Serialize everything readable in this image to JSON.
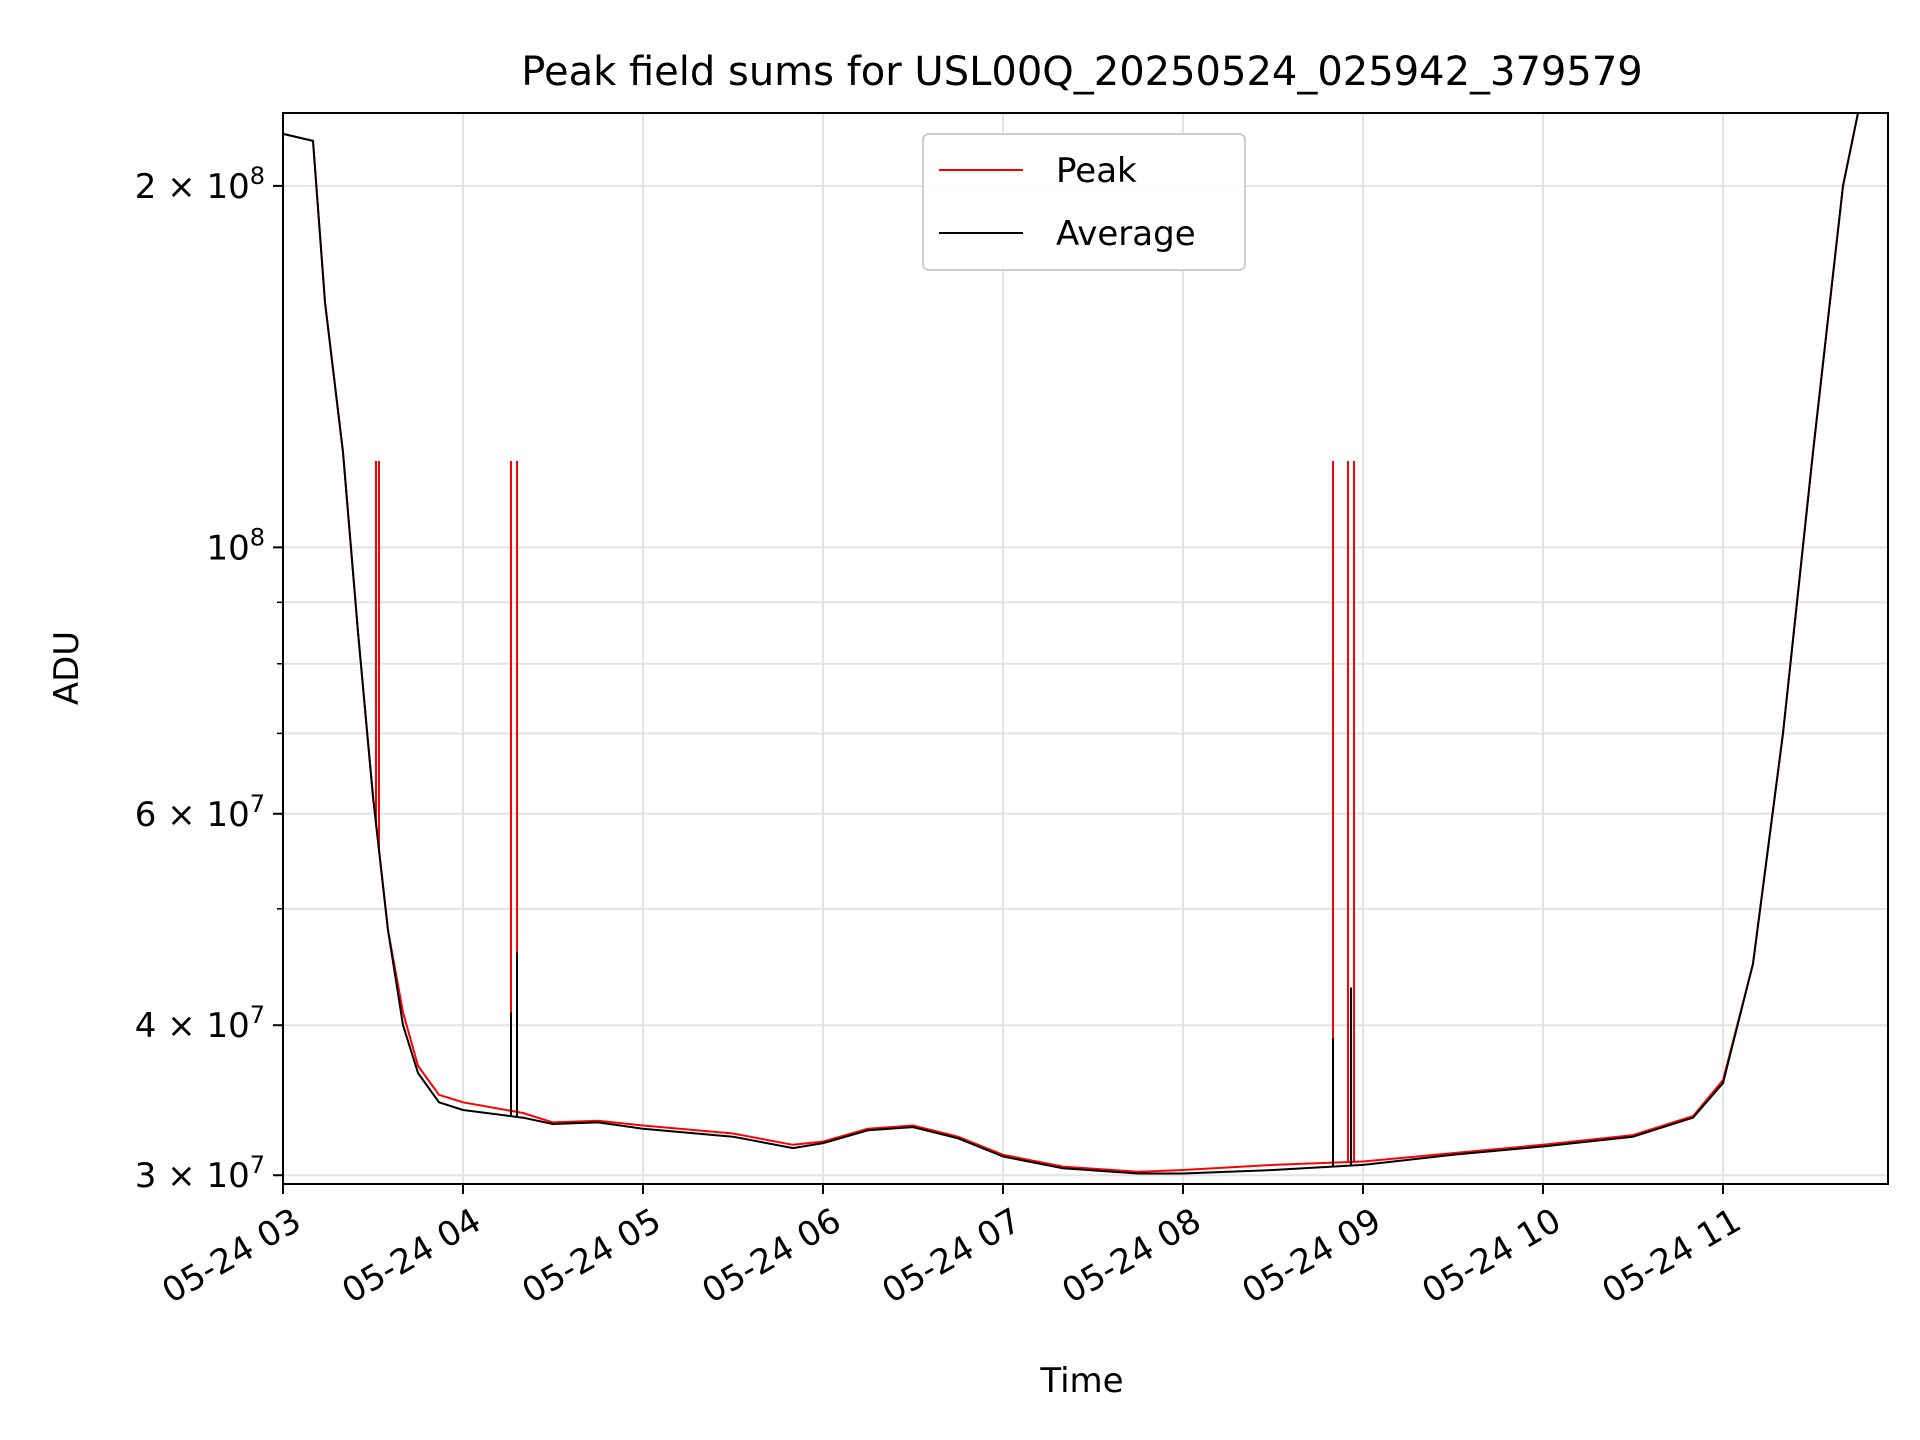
{
  "chart_data": {
    "type": "line",
    "title": "Peak field sums for USL00Q_20250524_025942_379579",
    "xlabel": "Time",
    "ylabel": "ADU",
    "y_scale": "log",
    "xlim": [
      "2025-05-24 03:00",
      "2025-05-24 11:55"
    ],
    "ylim": [
      29500000,
      230000000
    ],
    "x_ticks": [
      "05-24 03",
      "05-24 04",
      "05-24 05",
      "05-24 06",
      "05-24 07",
      "05-24 08",
      "05-24 09",
      "05-24 10",
      "05-24 11"
    ],
    "y_ticks": [
      {
        "value": 30000000,
        "base": "3",
        "exp": "7"
      },
      {
        "value": 40000000,
        "base": "4",
        "exp": "7"
      },
      {
        "value": 60000000,
        "base": "6",
        "exp": "7"
      },
      {
        "value": 100000000,
        "base": "",
        "exp": "8"
      },
      {
        "value": 200000000,
        "base": "2",
        "exp": "8"
      }
    ],
    "grid": true,
    "legend_position": "top-center",
    "series": [
      {
        "name": "Peak",
        "color": "#ff0000",
        "points": [
          [
            "2025-05-24 03:00",
            221000000
          ],
          [
            "2025-05-24 03:10",
            218000000
          ],
          [
            "2025-05-24 03:14",
            160000000
          ],
          [
            "2025-05-24 03:20",
            120000000
          ],
          [
            "2025-05-24 03:25",
            85000000
          ],
          [
            "2025-05-24 03:30",
            62000000
          ],
          [
            "2025-05-24 03:35",
            48000000
          ],
          [
            "2025-05-24 03:40",
            41000000
          ],
          [
            "2025-05-24 03:45",
            37000000
          ],
          [
            "2025-05-24 03:52",
            35000000
          ],
          [
            "2025-05-24 04:00",
            34500000
          ],
          [
            "2025-05-24 04:20",
            33800000
          ],
          [
            "2025-05-24 04:30",
            33200000
          ],
          [
            "2025-05-24 04:45",
            33300000
          ],
          [
            "2025-05-24 05:00",
            33000000
          ],
          [
            "2025-05-24 05:30",
            32500000
          ],
          [
            "2025-05-24 05:50",
            31800000
          ],
          [
            "2025-05-24 06:00",
            32000000
          ],
          [
            "2025-05-24 06:15",
            32800000
          ],
          [
            "2025-05-24 06:30",
            33000000
          ],
          [
            "2025-05-24 06:45",
            32300000
          ],
          [
            "2025-05-24 07:00",
            31200000
          ],
          [
            "2025-05-24 07:20",
            30500000
          ],
          [
            "2025-05-24 07:45",
            30200000
          ],
          [
            "2025-05-24 08:00",
            30300000
          ],
          [
            "2025-05-24 08:30",
            30600000
          ],
          [
            "2025-05-24 09:00",
            30800000
          ],
          [
            "2025-05-24 09:30",
            31300000
          ],
          [
            "2025-05-24 10:00",
            31800000
          ],
          [
            "2025-05-24 10:30",
            32400000
          ],
          [
            "2025-05-24 10:50",
            33600000
          ],
          [
            "2025-05-24 11:00",
            36000000
          ],
          [
            "2025-05-24 11:10",
            45000000
          ],
          [
            "2025-05-24 11:20",
            70000000
          ],
          [
            "2025-05-24 11:30",
            120000000
          ],
          [
            "2025-05-24 11:40",
            200000000
          ],
          [
            "2025-05-24 11:45",
            230000000
          ]
        ],
        "spikes": [
          {
            "x": "2025-05-24 03:31",
            "y": 118000000
          },
          {
            "x": "2025-05-24 03:32",
            "y": 118000000
          },
          {
            "x": "2025-05-24 04:16",
            "y": 118000000
          },
          {
            "x": "2025-05-24 04:18",
            "y": 118000000
          },
          {
            "x": "2025-05-24 08:50",
            "y": 118000000
          },
          {
            "x": "2025-05-24 08:55",
            "y": 118000000
          },
          {
            "x": "2025-05-24 08:57",
            "y": 118000000
          }
        ]
      },
      {
        "name": "Average",
        "color": "#000000",
        "points": [
          [
            "2025-05-24 03:00",
            221000000
          ],
          [
            "2025-05-24 03:10",
            218000000
          ],
          [
            "2025-05-24 03:14",
            160000000
          ],
          [
            "2025-05-24 03:20",
            120000000
          ],
          [
            "2025-05-24 03:25",
            85000000
          ],
          [
            "2025-05-24 03:30",
            62000000
          ],
          [
            "2025-05-24 03:35",
            48000000
          ],
          [
            "2025-05-24 03:40",
            40000000
          ],
          [
            "2025-05-24 03:45",
            36500000
          ],
          [
            "2025-05-24 03:52",
            34500000
          ],
          [
            "2025-05-24 04:00",
            34000000
          ],
          [
            "2025-05-24 04:20",
            33500000
          ],
          [
            "2025-05-24 04:30",
            33100000
          ],
          [
            "2025-05-24 04:45",
            33200000
          ],
          [
            "2025-05-24 05:00",
            32800000
          ],
          [
            "2025-05-24 05:30",
            32300000
          ],
          [
            "2025-05-24 05:50",
            31600000
          ],
          [
            "2025-05-24 06:00",
            31900000
          ],
          [
            "2025-05-24 06:15",
            32700000
          ],
          [
            "2025-05-24 06:30",
            32900000
          ],
          [
            "2025-05-24 06:45",
            32200000
          ],
          [
            "2025-05-24 07:00",
            31100000
          ],
          [
            "2025-05-24 07:20",
            30400000
          ],
          [
            "2025-05-24 07:45",
            30100000
          ],
          [
            "2025-05-24 08:00",
            30100000
          ],
          [
            "2025-05-24 08:30",
            30300000
          ],
          [
            "2025-05-24 09:00",
            30600000
          ],
          [
            "2025-05-24 09:30",
            31200000
          ],
          [
            "2025-05-24 10:00",
            31700000
          ],
          [
            "2025-05-24 10:30",
            32300000
          ],
          [
            "2025-05-24 10:50",
            33500000
          ],
          [
            "2025-05-24 11:00",
            35800000
          ],
          [
            "2025-05-24 11:10",
            45000000
          ],
          [
            "2025-05-24 11:20",
            70000000
          ],
          [
            "2025-05-24 11:30",
            120000000
          ],
          [
            "2025-05-24 11:40",
            200000000
          ],
          [
            "2025-05-24 11:45",
            230000000
          ]
        ],
        "spikes": [
          {
            "x": "2025-05-24 04:16",
            "y": 41000000
          },
          {
            "x": "2025-05-24 04:18",
            "y": 46000000
          },
          {
            "x": "2025-05-24 08:50",
            "y": 39000000
          },
          {
            "x": "2025-05-24 08:56",
            "y": 43000000
          }
        ]
      }
    ]
  }
}
